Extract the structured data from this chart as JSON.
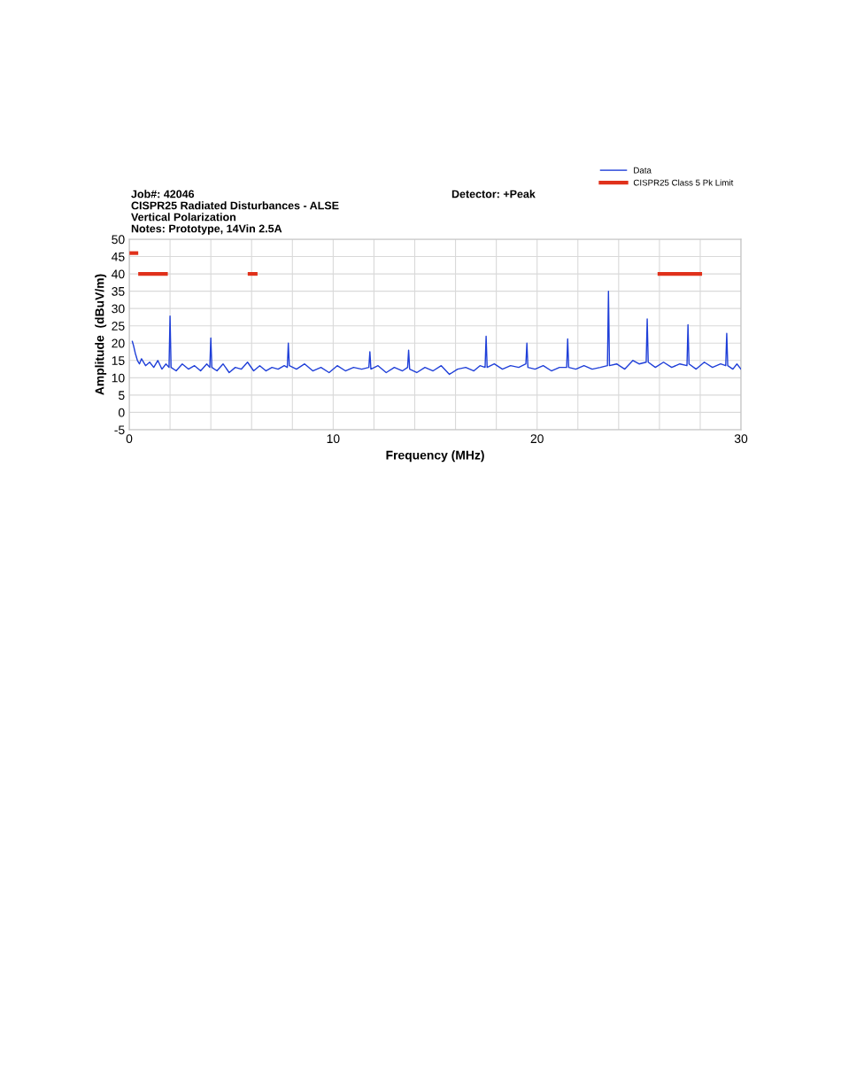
{
  "chart_data": {
    "type": "line",
    "title": "Job#: 42046",
    "subtitle": "CISPR25 Radiated Disturbances - ALSE",
    "annotations": [
      "Vertical Polarization",
      "Notes: Prototype, 14Vin 2.5A",
      "Detector: +Peak"
    ],
    "xlabel": "Frequency (MHz)",
    "ylabel": "Amplitude  (dBuV/m)",
    "xlim": [
      0,
      30
    ],
    "xticks": [
      0,
      {
        "value": 2,
        "label": null
      },
      {
        "value": 4,
        "label": null
      },
      {
        "value": 6,
        "label": null
      },
      {
        "value": 8,
        "label": null
      },
      10,
      {
        "value": 12,
        "label": null
      },
      {
        "value": 14,
        "label": null
      },
      {
        "value": 16,
        "label": null
      },
      {
        "value": 18,
        "label": null
      },
      20,
      {
        "value": 22,
        "label": null
      },
      {
        "value": 24,
        "label": null
      },
      {
        "value": 26,
        "label": null
      },
      {
        "value": 28,
        "label": null
      },
      30
    ],
    "ylim": [
      -5,
      50
    ],
    "yticks": [
      -5,
      0,
      5,
      10,
      15,
      20,
      25,
      30,
      35,
      40,
      45,
      50
    ],
    "grid": true,
    "legend": "top right",
    "marker": "none",
    "line_style": "solid",
    "series": [
      {
        "name": "Data",
        "color": "#1f3fd8",
        "x": [
          0.15,
          0.2,
          0.3,
          0.4,
          0.5,
          0.6,
          0.8,
          1.0,
          1.2,
          1.4,
          1.6,
          1.8,
          1.95,
          2.0,
          2.05,
          2.3,
          2.6,
          2.9,
          3.2,
          3.5,
          3.8,
          3.95,
          4.0,
          4.05,
          4.3,
          4.6,
          4.9,
          5.2,
          5.5,
          5.8,
          6.1,
          6.4,
          6.7,
          7.0,
          7.3,
          7.6,
          7.75,
          7.8,
          7.85,
          8.2,
          8.6,
          9.0,
          9.4,
          9.8,
          10.2,
          10.6,
          11.0,
          11.4,
          11.75,
          11.8,
          11.85,
          12.2,
          12.6,
          13.0,
          13.4,
          13.65,
          13.7,
          13.75,
          14.1,
          14.5,
          14.9,
          15.3,
          15.7,
          16.1,
          16.5,
          16.9,
          17.2,
          17.45,
          17.5,
          17.55,
          17.9,
          18.3,
          18.7,
          19.1,
          19.45,
          19.5,
          19.55,
          19.9,
          20.3,
          20.7,
          21.1,
          21.45,
          21.5,
          21.55,
          21.9,
          22.3,
          22.7,
          23.1,
          23.45,
          23.5,
          23.55,
          23.9,
          24.3,
          24.7,
          25.0,
          25.35,
          25.4,
          25.45,
          25.8,
          26.2,
          26.6,
          27.0,
          27.35,
          27.4,
          27.45,
          27.8,
          28.2,
          28.6,
          29.0,
          29.25,
          29.3,
          29.35,
          29.6,
          29.8,
          30.0
        ],
        "values": [
          20.5,
          19.5,
          17,
          15,
          14,
          15.5,
          13.5,
          14.5,
          13,
          15,
          12.5,
          14,
          13,
          27.8,
          13,
          12,
          14,
          12.5,
          13.5,
          12,
          14,
          13,
          21.5,
          13,
          12,
          14,
          11.5,
          13,
          12.5,
          14.5,
          12,
          13.5,
          12,
          13,
          12.5,
          13.5,
          13,
          20,
          13.5,
          12.5,
          14,
          12,
          13,
          11.5,
          13.5,
          12,
          13,
          12.5,
          13,
          17.5,
          12.5,
          13.5,
          11.5,
          13,
          12,
          13,
          18,
          12.5,
          11.5,
          13,
          12,
          13.5,
          11,
          12.5,
          13,
          12,
          13.5,
          13,
          22,
          13,
          14,
          12.5,
          13.5,
          13,
          14,
          20,
          13,
          12.5,
          13.5,
          12,
          13,
          13,
          21.2,
          13,
          12.5,
          13.5,
          12.5,
          13,
          13.5,
          35,
          13.5,
          14,
          12.5,
          15,
          14,
          14.5,
          27,
          14.5,
          13,
          14.5,
          13,
          14,
          13.5,
          25.3,
          14,
          12.5,
          14.5,
          13,
          14,
          13.5,
          22.8,
          13.5,
          12.5,
          14,
          12.5
        ]
      },
      {
        "name": "CISPR25 Class 5 Pk Limit",
        "color": "#e0311b",
        "x": [
          0.1,
          0.35
        ],
        "values": [
          46,
          46
        ]
      },
      {
        "color": "#e0311b",
        "x": [
          0.53,
          1.8
        ],
        "values": [
          40,
          40
        ]
      },
      {
        "color": "#e0311b",
        "x": [
          5.9,
          6.2
        ],
        "values": [
          40,
          40
        ]
      },
      {
        "color": "#e0311b",
        "x": [
          26,
          28
        ],
        "values": [
          40,
          40
        ]
      }
    ]
  }
}
